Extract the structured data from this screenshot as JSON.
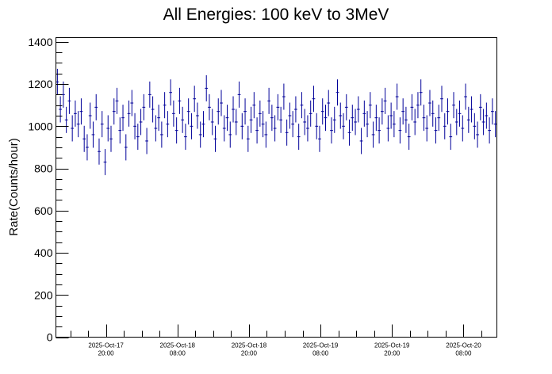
{
  "chart_data": {
    "type": "line",
    "style": "histogram-with-error-bars",
    "title": "All Energies:  100 keV to 3MeV",
    "xlabel": "",
    "ylabel": "Rate(Counts/hour)",
    "ylim": [
      0,
      1420
    ],
    "yticks": [
      0,
      200,
      400,
      600,
      800,
      1000,
      1200,
      1400
    ],
    "ytick_labels": [
      "0",
      "200",
      "400",
      "600",
      "800",
      "1000",
      "1200",
      "1400"
    ],
    "xlim_hours": [
      -8.4,
      65.6
    ],
    "x_unit": "hours since 2025-Oct-17 20:00",
    "xticks_hours": [
      0,
      12,
      24,
      36,
      48,
      60
    ],
    "xtick_labels": [
      [
        "2025-Oct-17",
        "20:00"
      ],
      [
        "2025-Oct-18",
        "08:00"
      ],
      [
        "2025-Oct-18",
        "20:00"
      ],
      [
        "2025-Oct-19",
        "08:00"
      ],
      [
        "2025-Oct-19",
        "20:00"
      ],
      [
        "2025-Oct-20",
        "08:00"
      ]
    ],
    "grid": false,
    "series_color": "#000099",
    "error": 62,
    "bin_hours": 0.5,
    "values": [
      1210,
      1080,
      1150,
      1030,
      1120,
      990,
      1060,
      1010,
      1070,
      940,
      900,
      1050,
      960,
      1090,
      880,
      1010,
      830,
      990,
      940,
      1070,
      1120,
      980,
      1040,
      900,
      1060,
      1110,
      1000,
      950,
      1020,
      1090,
      930,
      1150,
      1080,
      990,
      1040,
      960,
      1100,
      1010,
      1160,
      1060,
      980,
      1120,
      1030,
      950,
      1070,
      1000,
      1130,
      1050,
      960,
      1010,
      1180,
      1090,
      1020,
      940,
      1070,
      1110,
      990,
      1040,
      960,
      1080,
      1020,
      1150,
      1000,
      1070,
      940,
      1030,
      1100,
      980,
      1060,
      1010,
      960,
      1120,
      1040,
      990,
      1090,
      1030,
      1140,
      970,
      1050,
      1010,
      1080,
      950,
      1100,
      1020,
      990,
      1060,
      1130,
      1000,
      940,
      1070,
      1040,
      1110,
      980,
      1030,
      1160,
      1050,
      1000,
      1090,
      970,
      1040,
      1020,
      1080,
      930,
      1060,
      1010,
      1100,
      960,
      1040,
      980,
      1070,
      1120,
      990,
      1050,
      1010,
      1140,
      980,
      1070,
      1030,
      950,
      1090,
      1020,
      1100,
      1160,
      1040,
      990,
      1110,
      1060,
      980,
      1040,
      1130,
      1000,
      1070,
      950,
      1100,
      1020,
      1060,
      990,
      1140,
      1030,
      1080,
      1000,
      960,
      1090,
      1020,
      1050,
      980,
      1070,
      1010
    ]
  }
}
